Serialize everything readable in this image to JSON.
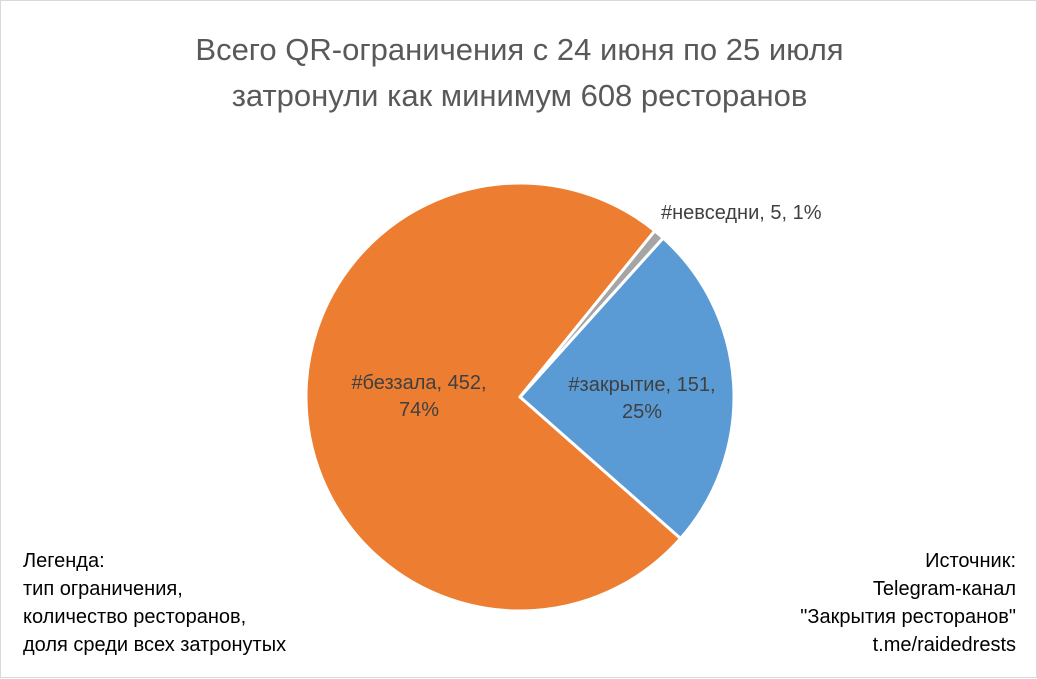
{
  "chart_data": {
    "type": "pie",
    "title": [
      "Всего QR-ограничения с 24 июня по 25 июля",
      "затронули как минимум 608 ресторанов"
    ],
    "slices": [
      {
        "name": "#закрытие",
        "value": 151,
        "percent": "25%",
        "color": "#5b9bd5",
        "label_lines": [
          "#закрытие, 151,",
          "25%"
        ]
      },
      {
        "name": "#беззала",
        "value": 452,
        "percent": "74%",
        "color": "#ed7d31",
        "label_lines": [
          "#беззала, 452,",
          "74%"
        ]
      },
      {
        "name": "#невседни",
        "value": 5,
        "percent": "1%",
        "color": "#a5a5a5",
        "label_lines": [
          "#невседни, 5, 1%"
        ]
      }
    ]
  },
  "legend_note": {
    "lines": [
      "Легенда:",
      "тип ограничения,",
      "количество ресторанов,",
      "доля среди всех затронутых"
    ]
  },
  "source_note": {
    "lines": [
      "Источник:",
      "Telegram-канал",
      "\"Закрытия ресторанов\"",
      "t.me/raidedrests"
    ]
  }
}
